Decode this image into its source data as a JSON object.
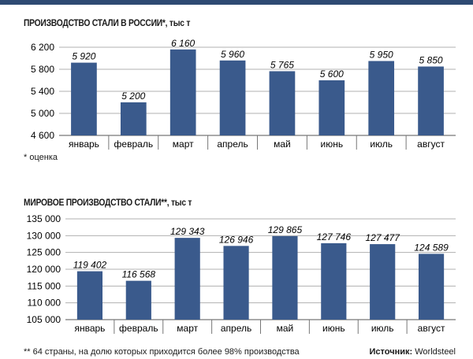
{
  "colors": {
    "bar": "#3a5a8c",
    "header_bar": "#2e4a72",
    "grid": "#b0b0b0"
  },
  "chart_data": [
    {
      "type": "bar",
      "title": "ПРОИЗВОДСТВО СТАЛИ В РОССИИ*, тыс т",
      "categories": [
        "январь",
        "февраль",
        "март",
        "апрель",
        "май",
        "июнь",
        "июль",
        "август"
      ],
      "values": [
        5920,
        5200,
        6160,
        5960,
        5765,
        5600,
        5950,
        5850
      ],
      "value_labels": [
        "5 920",
        "5 200",
        "6 160",
        "5 960",
        "5 765",
        "5 600",
        "5 950",
        "5 850"
      ],
      "yticks": [
        4600,
        5000,
        5400,
        5800,
        6200
      ],
      "ytick_labels": [
        "4 600",
        "5 000",
        "5 400",
        "5 800",
        "6 200"
      ],
      "ylim": [
        4600,
        6200
      ],
      "grid": true,
      "footnote": "* оценка"
    },
    {
      "type": "bar",
      "title": "МИРОВОЕ ПРОИЗВОДСТВО СТАЛИ**, тыс т",
      "categories": [
        "январь",
        "февраль",
        "март",
        "апрель",
        "май",
        "июнь",
        "июль",
        "август"
      ],
      "values": [
        119402,
        116568,
        129343,
        126946,
        129865,
        127746,
        127477,
        124589
      ],
      "value_labels": [
        "119 402",
        "116 568",
        "129 343",
        "126 946",
        "129 865",
        "127 746",
        "127 477",
        "124 589"
      ],
      "yticks": [
        105000,
        110000,
        115000,
        120000,
        125000,
        130000,
        135000
      ],
      "ytick_labels": [
        "105 000",
        "110 000",
        "115 000",
        "120 000",
        "125 000",
        "130 000",
        "135 000"
      ],
      "ylim": [
        105000,
        135000
      ],
      "grid": true,
      "footnote": "** 64 страны, на долю которых приходится более 98% производства"
    }
  ],
  "source": {
    "label": "Источник:",
    "value": "Worldsteel"
  }
}
